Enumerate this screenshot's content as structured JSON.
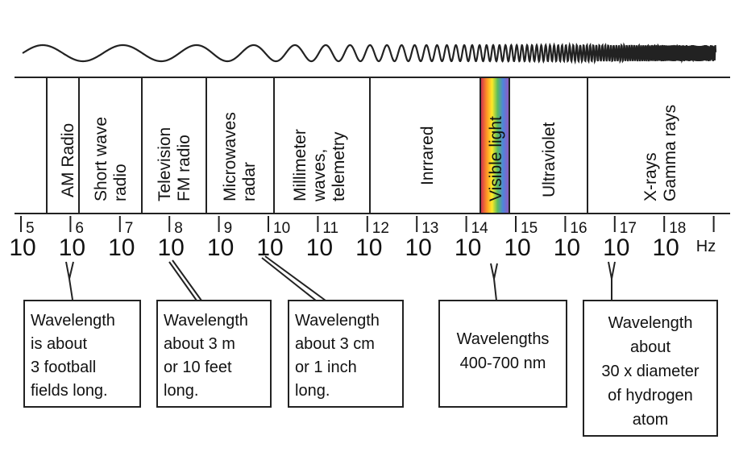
{
  "bands": [
    {
      "id": "am",
      "lines": [
        "AM Radio"
      ]
    },
    {
      "id": "shortwave",
      "lines": [
        "Short wave",
        "radio"
      ]
    },
    {
      "id": "tv",
      "lines": [
        "Television",
        "FM radio"
      ]
    },
    {
      "id": "microwave",
      "lines": [
        "Microwaves",
        "radar"
      ]
    },
    {
      "id": "mm",
      "lines": [
        "Millimeter",
        "waves,",
        "telemetry"
      ]
    },
    {
      "id": "ir",
      "lines": [
        "Inrrared"
      ]
    },
    {
      "id": "visible",
      "lines": [
        "Visible light"
      ]
    },
    {
      "id": "uv",
      "lines": [
        "Ultraviolet"
      ]
    },
    {
      "id": "xray",
      "lines": [
        "X-rays",
        "Gamma rays"
      ]
    }
  ],
  "scale": {
    "base_label": "10",
    "exponents": [
      "5",
      "6",
      "7",
      "8",
      "9",
      "10",
      "11",
      "12",
      "13",
      "14",
      "15",
      "16",
      "17",
      "18"
    ],
    "unit": "Hz"
  },
  "notes": [
    {
      "id": "am",
      "lines": [
        "Wavelength",
        "is about",
        "3 football",
        "fields long."
      ]
    },
    {
      "id": "tv",
      "lines": [
        "Wavelength",
        "about 3 m",
        "or 10 feet",
        "long."
      ]
    },
    {
      "id": "microwave",
      "lines": [
        "Wavelength",
        "about 3 cm",
        "or 1 inch",
        "long."
      ]
    },
    {
      "id": "visible",
      "lines": [
        "Wavelengths",
        "400-700 nm"
      ]
    },
    {
      "id": "xray",
      "lines": [
        "Wavelength",
        "about",
        "30 x diameter",
        "of hydrogen",
        "atom"
      ]
    }
  ],
  "colors": {
    "line": "#222222",
    "spectrum": [
      "#c8102e",
      "#ff7f00",
      "#ffe600",
      "#3cb043",
      "#2f6fd6",
      "#7b3fb5"
    ]
  }
}
